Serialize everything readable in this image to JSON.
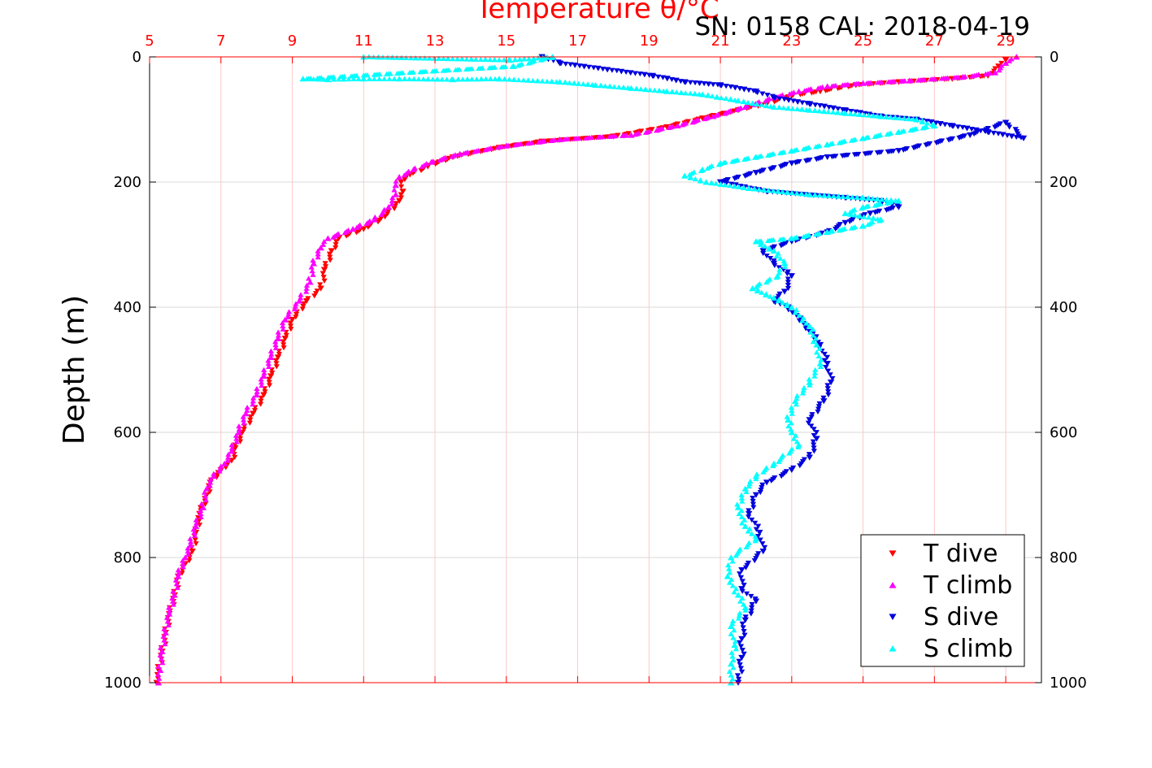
{
  "chart_data": {
    "type": "scatter",
    "title": "Temperature θ/°C",
    "subtitle": "SN: 0158  CAL: 2018-04-19",
    "ylabel": "Depth (m)",
    "x_top_ticks": [
      "5",
      "7",
      "9",
      "11",
      "13",
      "15",
      "17",
      "19",
      "21",
      "23",
      "25",
      "27",
      "29"
    ],
    "xlim": [
      5,
      30
    ],
    "y_ticks": [
      "0",
      "200",
      "400",
      "600",
      "800",
      "1000"
    ],
    "ylim": [
      0,
      1000
    ],
    "y_reversed": true,
    "grid": true,
    "legend_position": "bottom-right",
    "colors": {
      "title": "#ff0000",
      "axis_top": "#ff0000",
      "grid": "#d8d8d8",
      "grid_red": "#ffc8c8"
    },
    "series": [
      {
        "name": "T dive",
        "marker": "triangle-down",
        "color": "#ff0000",
        "points": [
          [
            29.0,
            5
          ],
          [
            28.8,
            15
          ],
          [
            28.5,
            30
          ],
          [
            27.5,
            35
          ],
          [
            26.0,
            40
          ],
          [
            24.8,
            45
          ],
          [
            23.8,
            55
          ],
          [
            23.0,
            62
          ],
          [
            22.3,
            75
          ],
          [
            21.5,
            85
          ],
          [
            20.5,
            98
          ],
          [
            19.5,
            112
          ],
          [
            18.0,
            127
          ],
          [
            16.0,
            135
          ],
          [
            14.8,
            145
          ],
          [
            13.5,
            160
          ],
          [
            12.8,
            175
          ],
          [
            12.3,
            188
          ],
          [
            12.05,
            200
          ],
          [
            12.1,
            215
          ],
          [
            12.0,
            230
          ],
          [
            11.6,
            255
          ],
          [
            11.0,
            275
          ],
          [
            10.3,
            290
          ],
          [
            10.1,
            310
          ],
          [
            9.9,
            340
          ],
          [
            9.8,
            370
          ],
          [
            9.4,
            390
          ],
          [
            9.0,
            420
          ],
          [
            8.8,
            450
          ],
          [
            8.6,
            480
          ],
          [
            8.4,
            510
          ],
          [
            8.2,
            540
          ],
          [
            7.9,
            570
          ],
          [
            7.6,
            600
          ],
          [
            7.4,
            625
          ],
          [
            7.3,
            645
          ],
          [
            7.0,
            660
          ],
          [
            6.7,
            680
          ],
          [
            6.6,
            700
          ],
          [
            6.4,
            730
          ],
          [
            6.3,
            760
          ],
          [
            6.2,
            790
          ],
          [
            6.0,
            810
          ],
          [
            5.8,
            830
          ],
          [
            5.7,
            860
          ],
          [
            5.55,
            890
          ],
          [
            5.45,
            920
          ],
          [
            5.35,
            950
          ],
          [
            5.25,
            980
          ],
          [
            5.2,
            1000
          ]
        ]
      },
      {
        "name": "T climb",
        "marker": "triangle-up",
        "color": "#ff00ff",
        "points": [
          [
            29.3,
            0
          ],
          [
            29.0,
            10
          ],
          [
            28.7,
            25
          ],
          [
            27.8,
            32
          ],
          [
            26.3,
            38
          ],
          [
            25.0,
            42
          ],
          [
            24.0,
            47
          ],
          [
            23.2,
            55
          ],
          [
            22.5,
            65
          ],
          [
            21.7,
            80
          ],
          [
            20.8,
            95
          ],
          [
            19.8,
            110
          ],
          [
            18.5,
            125
          ],
          [
            16.5,
            132
          ],
          [
            15.0,
            142
          ],
          [
            13.7,
            155
          ],
          [
            12.9,
            168
          ],
          [
            12.4,
            180
          ],
          [
            12.0,
            192
          ],
          [
            11.9,
            205
          ],
          [
            11.9,
            220
          ],
          [
            11.7,
            240
          ],
          [
            11.3,
            260
          ],
          [
            10.7,
            275
          ],
          [
            10.0,
            290
          ],
          [
            9.8,
            305
          ],
          [
            9.6,
            330
          ],
          [
            9.5,
            360
          ],
          [
            9.2,
            390
          ],
          [
            8.8,
            420
          ],
          [
            8.6,
            450
          ],
          [
            8.4,
            480
          ],
          [
            8.2,
            510
          ],
          [
            8.0,
            540
          ],
          [
            7.7,
            570
          ],
          [
            7.5,
            600
          ],
          [
            7.3,
            630
          ],
          [
            7.1,
            650
          ],
          [
            6.8,
            670
          ],
          [
            6.6,
            690
          ],
          [
            6.5,
            720
          ],
          [
            6.3,
            750
          ],
          [
            6.15,
            780
          ],
          [
            6.0,
            800
          ],
          [
            5.8,
            830
          ],
          [
            5.7,
            860
          ],
          [
            5.55,
            890
          ],
          [
            5.45,
            920
          ],
          [
            5.35,
            950
          ],
          [
            5.3,
            980
          ],
          [
            5.25,
            1000
          ]
        ]
      },
      {
        "name": "S dive",
        "marker": "triangle-down",
        "color": "#0000dd",
        "points": [
          [
            16.0,
            0
          ],
          [
            16.5,
            10
          ],
          [
            19.1,
            30
          ],
          [
            20.0,
            40
          ],
          [
            21.0,
            45
          ],
          [
            22.0,
            55
          ],
          [
            22.5,
            65
          ],
          [
            23.5,
            75
          ],
          [
            24.5,
            85
          ],
          [
            25.5,
            95
          ],
          [
            26.5,
            100
          ],
          [
            27.5,
            110
          ],
          [
            28.5,
            120
          ],
          [
            29.5,
            130
          ],
          [
            29.0,
            105
          ],
          [
            28.0,
            125
          ],
          [
            26.0,
            150
          ],
          [
            24.0,
            160
          ],
          [
            23.0,
            170
          ],
          [
            22.0,
            185
          ],
          [
            21.0,
            200
          ],
          [
            22.3,
            215
          ],
          [
            24.5,
            225
          ],
          [
            25.5,
            230
          ],
          [
            26.0,
            240
          ],
          [
            25.2,
            250
          ],
          [
            24.5,
            265
          ],
          [
            24.0,
            280
          ],
          [
            23.0,
            295
          ],
          [
            22.2,
            310
          ],
          [
            22.5,
            330
          ],
          [
            23.0,
            350
          ],
          [
            22.8,
            375
          ],
          [
            22.5,
            390
          ],
          [
            22.9,
            400
          ],
          [
            23.4,
            430
          ],
          [
            23.8,
            460
          ],
          [
            24.0,
            490
          ],
          [
            24.1,
            520
          ],
          [
            23.9,
            550
          ],
          [
            23.5,
            580
          ],
          [
            23.7,
            610
          ],
          [
            23.5,
            640
          ],
          [
            23.0,
            660
          ],
          [
            22.3,
            680
          ],
          [
            22.0,
            700
          ],
          [
            21.8,
            730
          ],
          [
            22.1,
            760
          ],
          [
            22.2,
            790
          ],
          [
            21.6,
            820
          ],
          [
            21.6,
            850
          ],
          [
            22.0,
            870
          ],
          [
            21.7,
            900
          ],
          [
            21.6,
            930
          ],
          [
            21.6,
            960
          ],
          [
            21.5,
            1000
          ]
        ]
      },
      {
        "name": "S climb",
        "marker": "triangle-up",
        "color": "#00ffff",
        "points": [
          [
            11.0,
            0
          ],
          [
            15.1,
            5
          ],
          [
            16.3,
            0
          ],
          [
            15.2,
            15
          ],
          [
            9.3,
            35
          ],
          [
            10.0,
            36
          ],
          [
            11.0,
            35
          ],
          [
            12.0,
            35
          ],
          [
            13.5,
            36
          ],
          [
            14.8,
            35
          ],
          [
            16.5,
            40
          ],
          [
            17.5,
            45
          ],
          [
            18.5,
            50
          ],
          [
            19.5,
            55
          ],
          [
            20.5,
            60
          ],
          [
            21.5,
            70
          ],
          [
            22.5,
            80
          ],
          [
            23.5,
            85
          ],
          [
            24.5,
            90
          ],
          [
            25.5,
            95
          ],
          [
            26.5,
            100
          ],
          [
            27.0,
            110
          ],
          [
            26.0,
            120
          ],
          [
            25.0,
            130
          ],
          [
            24.0,
            140
          ],
          [
            23.0,
            150
          ],
          [
            22.0,
            160
          ],
          [
            21.0,
            170
          ],
          [
            20.5,
            180
          ],
          [
            20.0,
            190
          ],
          [
            20.6,
            200
          ],
          [
            21.8,
            210
          ],
          [
            23.5,
            220
          ],
          [
            25.0,
            225
          ],
          [
            26.0,
            230
          ],
          [
            25.0,
            240
          ],
          [
            24.5,
            250
          ],
          [
            25.5,
            260
          ],
          [
            25.0,
            270
          ],
          [
            24.0,
            280
          ],
          [
            23.0,
            290
          ],
          [
            22.0,
            295
          ],
          [
            22.5,
            310
          ],
          [
            22.8,
            330
          ],
          [
            22.6,
            350
          ],
          [
            21.9,
            370
          ],
          [
            22.5,
            385
          ],
          [
            23.0,
            400
          ],
          [
            23.5,
            430
          ],
          [
            23.7,
            460
          ],
          [
            23.8,
            490
          ],
          [
            23.5,
            520
          ],
          [
            23.1,
            550
          ],
          [
            22.9,
            580
          ],
          [
            23.0,
            600
          ],
          [
            23.2,
            620
          ],
          [
            22.5,
            650
          ],
          [
            22.0,
            670
          ],
          [
            21.7,
            690
          ],
          [
            21.5,
            720
          ],
          [
            21.7,
            750
          ],
          [
            22.0,
            770
          ],
          [
            21.3,
            800
          ],
          [
            21.2,
            830
          ],
          [
            21.5,
            860
          ],
          [
            21.7,
            880
          ],
          [
            21.3,
            910
          ],
          [
            21.4,
            940
          ],
          [
            21.3,
            970
          ],
          [
            21.3,
            1000
          ]
        ]
      }
    ]
  }
}
